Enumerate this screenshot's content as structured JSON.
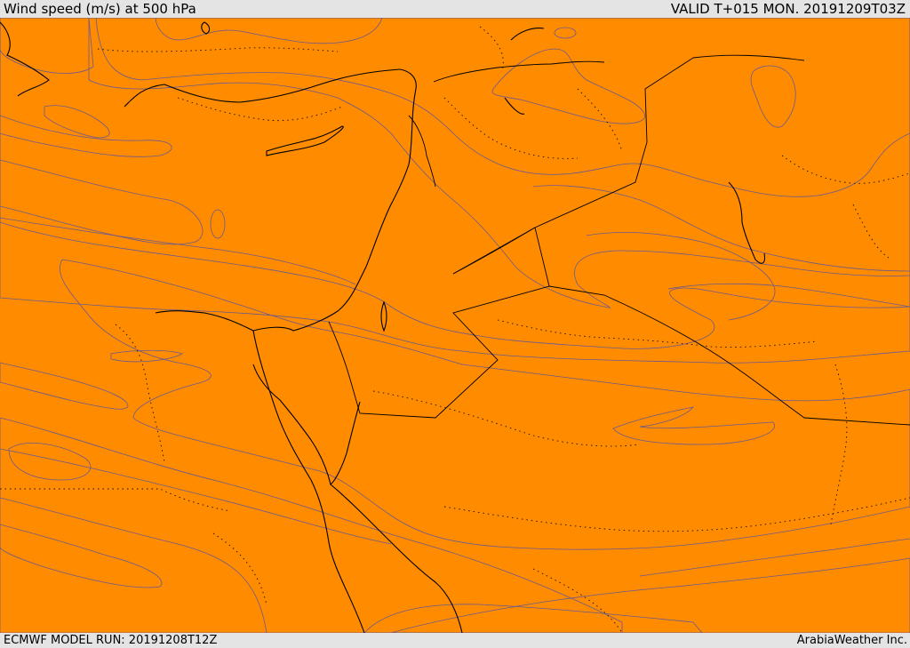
{
  "header": {
    "title": "Wind speed (m/s) at 500 hPa",
    "valid": "VALID T+015 MON. 20191209T03Z"
  },
  "footer": {
    "model_run": "ECMWF MODEL RUN: 20191208T12Z",
    "credit": "ArabiaWeather Inc."
  },
  "colors": {
    "band_10_15": "#ffdcaa",
    "band_15_20": "#ffff00",
    "band_20_25": "#ffe000",
    "band_25_30": "#ffc000",
    "band_30_35": "#ffa200",
    "band_35_40": "#ff8b00",
    "band_40_45": "#ff6400",
    "contour": "#6d5a8c",
    "coastline": "#000000"
  }
}
